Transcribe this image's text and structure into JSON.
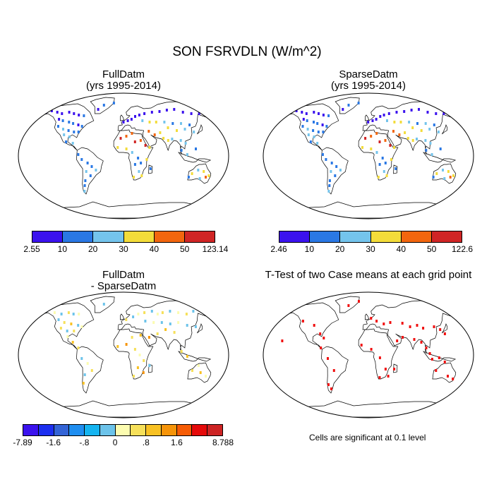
{
  "title": "SON FSRVDLN (W/m^2)",
  "panels": [
    {
      "title_line1": "FullDatm",
      "title_line2": "(yrs 1995-2014)"
    },
    {
      "title_line1": "SparseDatm",
      "title_line2": "(yrs 1995-2014)"
    },
    {
      "title_line1": "FullDatm",
      "title_line2": "- SparseDatm"
    },
    {
      "title_line1": "T-Test of two Case means at each grid point",
      "title_line2": ""
    }
  ],
  "colorbars": [
    {
      "colors": [
        "#3b12ee",
        "#2a78e4",
        "#74c4ec",
        "#f3dc3a",
        "#f2660e",
        "#d02525"
      ],
      "labels": [
        "2.55",
        "10",
        "20",
        "30",
        "40",
        "50",
        "123.14"
      ]
    },
    {
      "colors": [
        "#3b12ee",
        "#2a78e4",
        "#74c4ec",
        "#f3dc3a",
        "#f2660e",
        "#d02525"
      ],
      "labels": [
        "2.46",
        "10",
        "20",
        "30",
        "40",
        "50",
        "122.6"
      ]
    },
    {
      "colors": [
        "#3b12ee",
        "#1c2ff0",
        "#3464d6",
        "#1f8ef0",
        "#15b4f0",
        "#6cc3ea",
        "#fcfcb0",
        "#f6e05a",
        "#f8c123",
        "#f69409",
        "#f65c05",
        "#e50a0a",
        "#cd2424"
      ],
      "labels": [
        "-7.89",
        "",
        "-1.6",
        "",
        "-.8",
        "",
        "0",
        "",
        ".8",
        "",
        "1.6",
        "",
        "",
        "8.788"
      ]
    }
  ],
  "significance_note": "Cells are significant at 0.1 level"
}
